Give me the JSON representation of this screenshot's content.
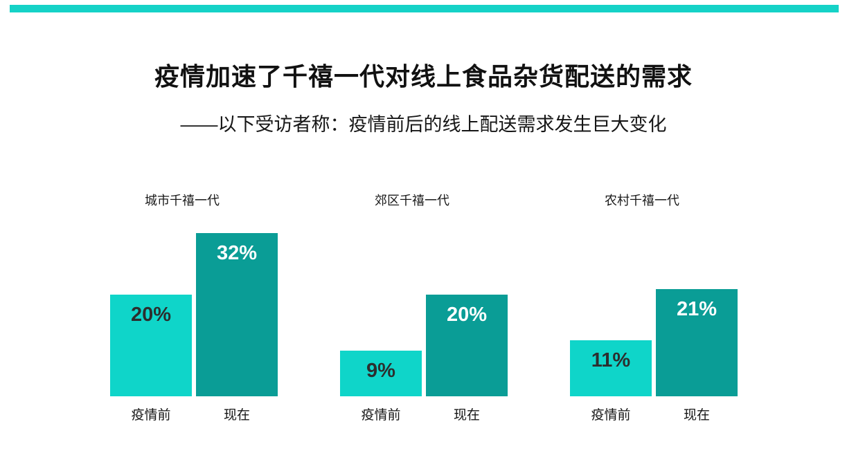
{
  "page": {
    "background": "#ffffff",
    "accent_color": "#15d2c7"
  },
  "header": {
    "title": "疫情加速了千禧一代对线上食品杂货配送的需求",
    "subtitle": "——以下受访者称：疫情前后的线上配送需求发生巨大变化"
  },
  "chart_data": {
    "type": "bar",
    "categories": [
      "城市千禧一代",
      "郊区千禧一代",
      "农村千禧一代"
    ],
    "series": [
      {
        "name": "疫情前",
        "color": "#0fd5c9",
        "label_color": "#2c2e2e",
        "values": [
          20,
          9,
          11
        ]
      },
      {
        "name": "现在",
        "color": "#0a9d96",
        "label_color": "#ffffff",
        "values": [
          32,
          20,
          21
        ]
      }
    ],
    "value_suffix": "%",
    "value_labels": [
      [
        "20%",
        "9%",
        "11%"
      ],
      [
        "32%",
        "20%",
        "21%"
      ]
    ],
    "legend": "none",
    "grid": false
  }
}
